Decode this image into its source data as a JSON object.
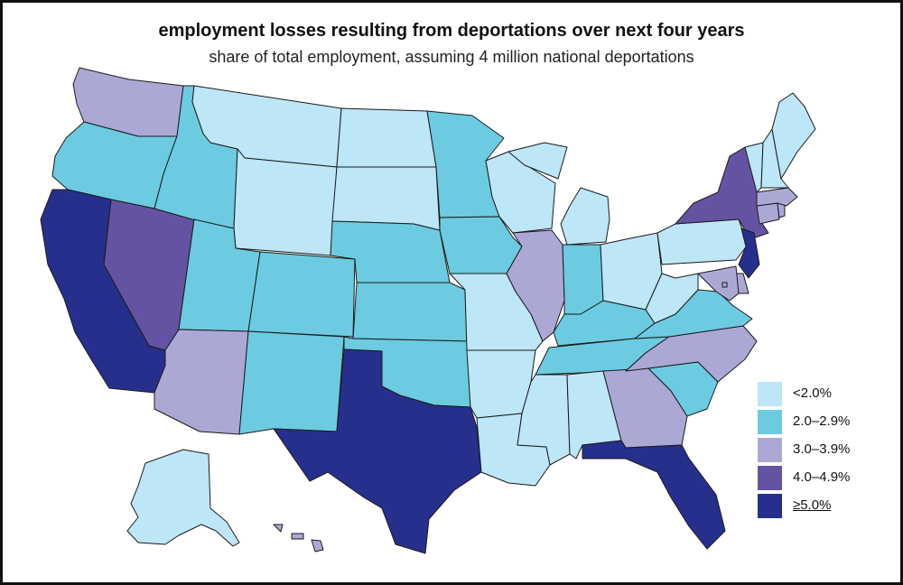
{
  "title": "employment losses resulting from deportations over next four years",
  "subtitle": "share of total employment, assuming 4 million national deportations",
  "legend": [
    {
      "label": "<2.0%",
      "color": "#bde6f7"
    },
    {
      "label": "2.0–2.9%",
      "color": "#6ccbe0"
    },
    {
      "label": "3.0–3.9%",
      "color": "#aca8d6"
    },
    {
      "label": "4.0–4.9%",
      "color": "#6453a3"
    },
    {
      "label": "≥5.0%",
      "color": "#272f8c"
    }
  ],
  "chart_data": {
    "type": "choropleth",
    "title": "employment losses resulting from deportations over next four years",
    "subtitle": "share of total employment, assuming 4 million national deportations",
    "categories": [
      "<2.0%",
      "2.0–2.9%",
      "3.0–3.9%",
      "4.0–4.9%",
      "≥5.0%"
    ],
    "states": {
      "WA": 2,
      "OR": 1,
      "CA": 4,
      "NV": 3,
      "ID": 1,
      "MT": 0,
      "WY": 0,
      "UT": 1,
      "AZ": 2,
      "CO": 1,
      "NM": 1,
      "ND": 0,
      "SD": 0,
      "NE": 1,
      "KS": 1,
      "OK": 1,
      "TX": 4,
      "MN": 1,
      "IA": 1,
      "MO": 0,
      "AR": 0,
      "LA": 0,
      "WI": 0,
      "IL": 2,
      "MI": 0,
      "IN": 1,
      "OH": 0,
      "KY": 1,
      "TN": 1,
      "MS": 0,
      "AL": 0,
      "GA": 2,
      "FL": 4,
      "SC": 1,
      "NC": 2,
      "VA": 1,
      "WV": 0,
      "PA": 0,
      "NY": 3,
      "NJ": 4,
      "DE": 2,
      "MD": 2,
      "DC": 2,
      "CT": 2,
      "RI": 2,
      "MA": 2,
      "VT": 0,
      "NH": 0,
      "ME": 0,
      "AK": 0,
      "HI": 2
    },
    "legend_position": "bottom-right"
  }
}
